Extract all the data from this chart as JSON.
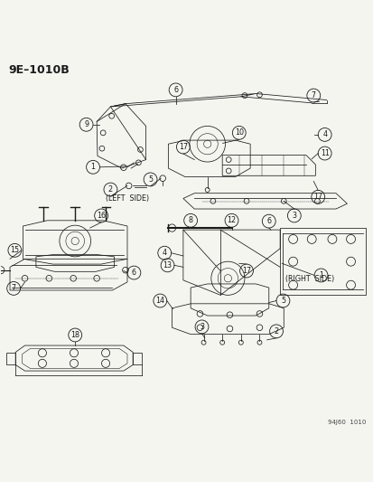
{
  "title": "9E–1010B",
  "bg": "#f5f5f0",
  "fg": "#1a1a1a",
  "watermark": "94J60  1010",
  "figsize": [
    4.14,
    5.33
  ],
  "dpi": 100,
  "title_fs": 9,
  "callout_r": 0.018,
  "callout_fs": 5.8,
  "lw": 0.55
}
